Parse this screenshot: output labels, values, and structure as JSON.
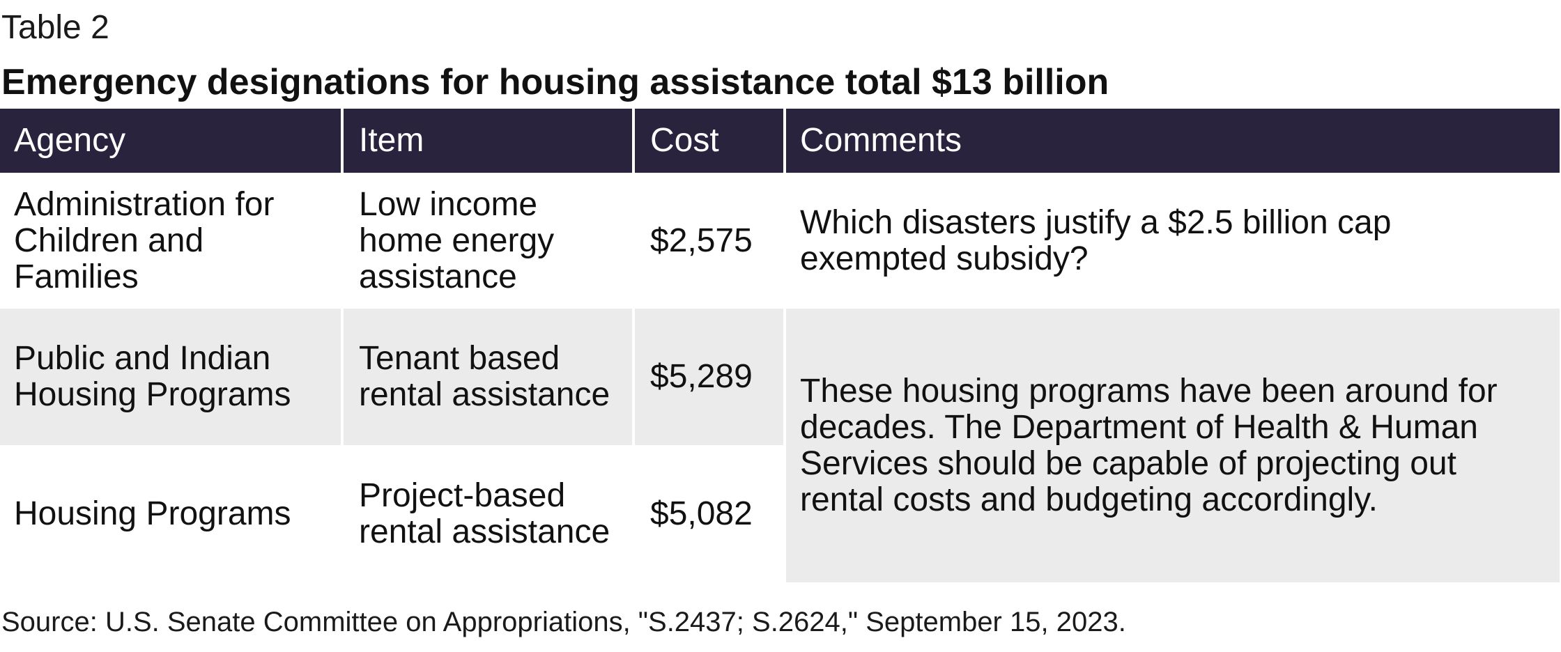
{
  "table_label": "Table 2",
  "title": "Emergency designations for housing assistance total $13 billion",
  "headers": {
    "agency": "Agency",
    "item": "Item",
    "cost": "Cost",
    "comments": "Comments"
  },
  "rows": [
    {
      "agency": "Administration for Children and Families",
      "item": "Low income home energy assistance",
      "cost": "$2,575",
      "comment": "Which disasters justify a $2.5 billion cap exempted subsidy?"
    },
    {
      "agency": "Public and Indian Housing Programs",
      "item": "Tenant based rental assistance",
      "cost": "$5,289"
    },
    {
      "agency": "Housing Programs",
      "item": "Project-based rental assistance",
      "cost": "$5,082"
    }
  ],
  "merged_comment": "These housing programs have been around for decades. The Department of Health & Human Services should be capable of projecting out rental costs and budgeting accordingly.",
  "source": "Source: U.S. Senate Committee on Appropriations, \"S.2437; S.2624,\" September 15, 2023.",
  "colors": {
    "header_bg": "#29233d",
    "header_text": "#ffffff",
    "shade_row": "#ebebeb"
  }
}
